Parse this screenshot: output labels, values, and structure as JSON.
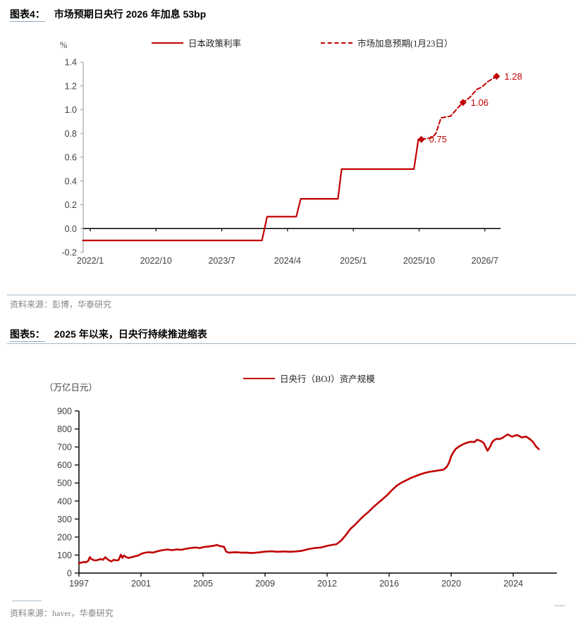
{
  "colors": {
    "red": "#C00000",
    "axis_gray": "#A6A6A6",
    "black": "#000000",
    "tick_label": "#404040",
    "source_text": "#848484",
    "rule": "#A8B9C7",
    "label_underline": "#8FA9C6"
  },
  "chart_data": [
    {
      "type": "line",
      "figure_label": "图表4：",
      "title": "市场预期日央行 2026 年加息 53bp",
      "unit_label": "%",
      "x_note": "x values are months since 2022-01",
      "x_ticks": [
        {
          "m": 0,
          "label": "2022/1"
        },
        {
          "m": 9,
          "label": "2022/10"
        },
        {
          "m": 18,
          "label": "2023/7"
        },
        {
          "m": 27,
          "label": "2024/4"
        },
        {
          "m": 36,
          "label": "2025/1"
        },
        {
          "m": 45,
          "label": "2025/10"
        },
        {
          "m": 54,
          "label": "2026/7"
        }
      ],
      "ylim": [
        -0.2,
        1.4
      ],
      "y_ticks": [
        -0.2,
        0.0,
        0.2,
        0.4,
        0.6,
        0.8,
        1.0,
        1.2,
        1.4
      ],
      "grid": false,
      "legend_position": "top",
      "series": [
        {
          "name": "日本政策利率",
          "style": "solid",
          "points": [
            [
              -1,
              -0.1
            ],
            [
              23.5,
              -0.1
            ],
            [
              24.2,
              0.1
            ],
            [
              28.2,
              0.1
            ],
            [
              28.8,
              0.25
            ],
            [
              33.9,
              0.25
            ],
            [
              34.4,
              0.5
            ],
            [
              44.3,
              0.5
            ],
            [
              44.9,
              0.75
            ],
            [
              45.3,
              0.75
            ]
          ]
        },
        {
          "name": "市场加息预期(1月23日）",
          "style": "dashed",
          "points": [
            [
              45.3,
              0.75
            ],
            [
              46.8,
              0.765
            ],
            [
              47.3,
              0.8
            ],
            [
              48.0,
              0.93
            ],
            [
              49.3,
              0.945
            ],
            [
              50.6,
              1.035
            ],
            [
              51.0,
              1.06
            ],
            [
              51.9,
              1.1
            ],
            [
              52.9,
              1.17
            ],
            [
              53.6,
              1.19
            ],
            [
              54.4,
              1.235
            ],
            [
              55.6,
              1.28
            ]
          ],
          "markers": [
            {
              "m": 45.3,
              "v": 0.75,
              "label": "0.75"
            },
            {
              "m": 51.0,
              "v": 1.06,
              "label": "1.06"
            },
            {
              "m": 55.6,
              "v": 1.28,
              "label": "1.28"
            }
          ]
        }
      ],
      "source": "资料来源：彭博，华泰研究"
    },
    {
      "type": "line",
      "figure_label": "图表5：",
      "title": "2025 年以来，日央行持续推进缩表",
      "unit_label": "（万亿日元）",
      "x_ticks": [
        1997,
        2001,
        2005,
        2009,
        2012,
        2016,
        2020,
        2024
      ],
      "ylim": [
        0,
        900
      ],
      "y_tick_step": 100,
      "grid": false,
      "legend_position": "top",
      "series": [
        {
          "name": "日央行（BOJ）资产规模",
          "style": "solid",
          "points": [
            [
              1997.0,
              55
            ],
            [
              1997.15,
              58
            ],
            [
              1997.3,
              62
            ],
            [
              1997.45,
              60
            ],
            [
              1997.6,
              68
            ],
            [
              1997.7,
              88
            ],
            [
              1997.8,
              78
            ],
            [
              1997.95,
              72
            ],
            [
              1998.1,
              70
            ],
            [
              1998.25,
              74
            ],
            [
              1998.4,
              78
            ],
            [
              1998.55,
              74
            ],
            [
              1998.7,
              88
            ],
            [
              1998.8,
              80
            ],
            [
              1998.95,
              70
            ],
            [
              1999.1,
              65
            ],
            [
              1999.25,
              74
            ],
            [
              1999.4,
              70
            ],
            [
              1999.55,
              72
            ],
            [
              1999.7,
              102
            ],
            [
              1999.8,
              84
            ],
            [
              1999.9,
              98
            ],
            [
              2000.05,
              88
            ],
            [
              2000.2,
              84
            ],
            [
              2000.4,
              88
            ],
            [
              2000.6,
              93
            ],
            [
              2000.8,
              97
            ],
            [
              2001.0,
              106
            ],
            [
              2001.2,
              112
            ],
            [
              2001.5,
              116
            ],
            [
              2001.8,
              114
            ],
            [
              2002.1,
              122
            ],
            [
              2002.4,
              127
            ],
            [
              2002.7,
              131
            ],
            [
              2003.0,
              127
            ],
            [
              2003.3,
              131
            ],
            [
              2003.6,
              129
            ],
            [
              2003.9,
              135
            ],
            [
              2004.2,
              139
            ],
            [
              2004.5,
              142
            ],
            [
              2004.8,
              139
            ],
            [
              2005.1,
              145
            ],
            [
              2005.4,
              148
            ],
            [
              2005.7,
              152
            ],
            [
              2005.9,
              156
            ],
            [
              2006.05,
              151
            ],
            [
              2006.2,
              148
            ],
            [
              2006.35,
              146
            ],
            [
              2006.5,
              118
            ],
            [
              2006.7,
              113
            ],
            [
              2006.9,
              115
            ],
            [
              2007.2,
              116
            ],
            [
              2007.5,
              113
            ],
            [
              2007.8,
              114
            ],
            [
              2008.1,
              111
            ],
            [
              2008.4,
              113
            ],
            [
              2008.7,
              116
            ],
            [
              2009.0,
              119
            ],
            [
              2009.3,
              121
            ],
            [
              2009.6,
              118
            ],
            [
              2009.9,
              120
            ],
            [
              2010.2,
              118
            ],
            [
              2010.5,
              120
            ],
            [
              2010.8,
              124
            ],
            [
              2011.1,
              133
            ],
            [
              2011.4,
              139
            ],
            [
              2011.7,
              142
            ],
            [
              2012.0,
              151
            ],
            [
              2012.3,
              156
            ],
            [
              2012.6,
              160
            ],
            [
              2012.9,
              180
            ],
            [
              2013.2,
              210
            ],
            [
              2013.5,
              245
            ],
            [
              2013.8,
              268
            ],
            [
              2014.1,
              295
            ],
            [
              2014.4,
              320
            ],
            [
              2014.7,
              342
            ],
            [
              2015.0,
              368
            ],
            [
              2015.3,
              390
            ],
            [
              2015.6,
              412
            ],
            [
              2015.9,
              435
            ],
            [
              2016.2,
              462
            ],
            [
              2016.5,
              486
            ],
            [
              2016.8,
              502
            ],
            [
              2017.1,
              515
            ],
            [
              2017.4,
              528
            ],
            [
              2017.7,
              538
            ],
            [
              2018.0,
              548
            ],
            [
              2018.3,
              556
            ],
            [
              2018.6,
              562
            ],
            [
              2018.9,
              566
            ],
            [
              2019.2,
              570
            ],
            [
              2019.5,
              574
            ],
            [
              2019.7,
              588
            ],
            [
              2019.85,
              610
            ],
            [
              2020.0,
              648
            ],
            [
              2020.15,
              672
            ],
            [
              2020.3,
              690
            ],
            [
              2020.5,
              702
            ],
            [
              2020.7,
              712
            ],
            [
              2020.9,
              720
            ],
            [
              2021.1,
              726
            ],
            [
              2021.3,
              729
            ],
            [
              2021.5,
              727
            ],
            [
              2021.65,
              740
            ],
            [
              2021.8,
              737
            ],
            [
              2021.95,
              731
            ],
            [
              2022.1,
              722
            ],
            [
              2022.25,
              695
            ],
            [
              2022.35,
              679
            ],
            [
              2022.5,
              700
            ],
            [
              2022.65,
              728
            ],
            [
              2022.8,
              740
            ],
            [
              2022.95,
              746
            ],
            [
              2023.1,
              743
            ],
            [
              2023.3,
              750
            ],
            [
              2023.5,
              762
            ],
            [
              2023.65,
              770
            ],
            [
              2023.8,
              762
            ],
            [
              2023.95,
              757
            ],
            [
              2024.1,
              763
            ],
            [
              2024.25,
              766
            ],
            [
              2024.4,
              760
            ],
            [
              2024.55,
              753
            ],
            [
              2024.7,
              756
            ],
            [
              2024.85,
              757
            ],
            [
              2025.0,
              748
            ],
            [
              2025.15,
              738
            ],
            [
              2025.3,
              726
            ],
            [
              2025.45,
              705
            ],
            [
              2025.55,
              696
            ],
            [
              2025.65,
              688
            ]
          ]
        }
      ],
      "source": "资料来源：haver，华泰研究"
    }
  ]
}
